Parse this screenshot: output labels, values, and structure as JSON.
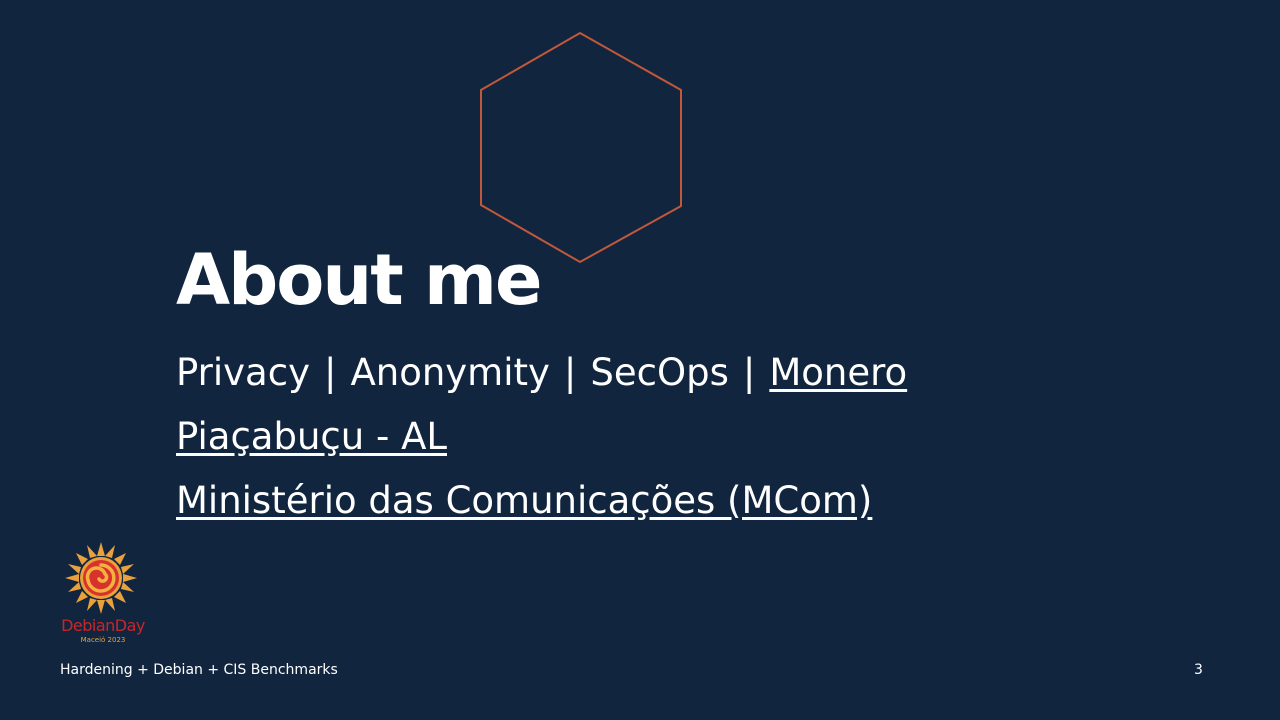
{
  "slide": {
    "title": "About me",
    "interests": [
      "Privacy",
      "Anonymity",
      "SecOps",
      "Monero"
    ],
    "separator": "|",
    "location": "Piaçabuçu - AL",
    "employer": "Ministério das Comunicações (MCom)"
  },
  "logo": {
    "name": "DebianDay",
    "subtitle": "Maceió 2023",
    "icon": "debian-swirl-sun-icon"
  },
  "footer": {
    "title": "Hardening + Debian + CIS Benchmarks",
    "page_number": "3"
  },
  "colors": {
    "background": "#11253f",
    "hexagon_stroke": "#c0583a",
    "text": "#ffffff",
    "logo_red": "#c8262a",
    "logo_orange": "#e8a13c"
  }
}
